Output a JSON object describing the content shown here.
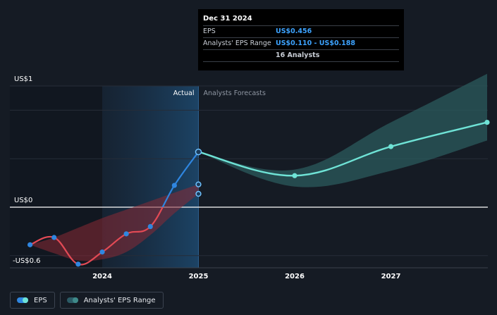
{
  "tooltip": {
    "date": "Dec 31 2024",
    "rows": [
      {
        "label": "EPS",
        "value": "US$0.456"
      },
      {
        "label": "Analysts' EPS Range",
        "value": "US$0.110 - US$0.188"
      },
      {
        "label": "",
        "value": "16 Analysts"
      }
    ]
  },
  "legend": {
    "eps_label": "EPS",
    "range_label": "Analysts' EPS Range"
  },
  "chart_data": {
    "type": "line",
    "y_axis_labels": [
      "US$1",
      "US$0",
      "-US$0.6"
    ],
    "x_tick_labels": [
      "2024",
      "2025",
      "2026",
      "2027"
    ],
    "region_labels": {
      "actual": "Actual",
      "forecast": "Analysts Forecasts"
    },
    "ylim": [
      -0.6,
      1.0
    ],
    "series": [
      {
        "name": "EPS",
        "actual": [
          {
            "x": 2023.25,
            "y": -0.31
          },
          {
            "x": 2023.5,
            "y": -0.25
          },
          {
            "x": 2023.75,
            "y": -0.47
          },
          {
            "x": 2024.0,
            "y": -0.37
          },
          {
            "x": 2024.25,
            "y": -0.22
          },
          {
            "x": 2024.5,
            "y": -0.16
          },
          {
            "x": 2024.75,
            "y": 0.18
          },
          {
            "x": 2025.0,
            "y": 0.456
          }
        ],
        "forecast": [
          {
            "x": 2025.0,
            "y": 0.456
          },
          {
            "x": 2026.0,
            "y": 0.26
          },
          {
            "x": 2027.0,
            "y": 0.5
          },
          {
            "x": 2028.0,
            "y": 0.7
          }
        ]
      },
      {
        "name": "Analysts' EPS Range",
        "history": [
          {
            "x": 2023.25,
            "low": -0.31,
            "high": -0.31
          },
          {
            "x": 2023.5,
            "low": -0.38,
            "high": -0.25
          },
          {
            "x": 2023.75,
            "low": -0.44,
            "high": -0.17
          },
          {
            "x": 2024.0,
            "low": -0.43,
            "high": -0.09
          },
          {
            "x": 2024.25,
            "low": -0.37,
            "high": -0.02
          },
          {
            "x": 2024.5,
            "low": -0.23,
            "high": 0.05
          },
          {
            "x": 2024.75,
            "low": -0.05,
            "high": 0.12
          },
          {
            "x": 2025.0,
            "low": 0.11,
            "high": 0.188
          }
        ],
        "forecast": [
          {
            "x": 2025.0,
            "low": 0.456,
            "high": 0.456
          },
          {
            "x": 2026.0,
            "low": 0.17,
            "high": 0.31
          },
          {
            "x": 2027.0,
            "low": 0.3,
            "high": 0.7
          },
          {
            "x": 2028.0,
            "low": 0.55,
            "high": 1.1
          }
        ]
      }
    ],
    "colors": {
      "eps_actual": "#2f86e0",
      "eps_negative": "#e24a55",
      "eps_forecast": "#6fe3d6",
      "range_history": "#8a2a35",
      "range_forecast": "#2b5b5c",
      "zero_line": "#ffffff"
    }
  }
}
